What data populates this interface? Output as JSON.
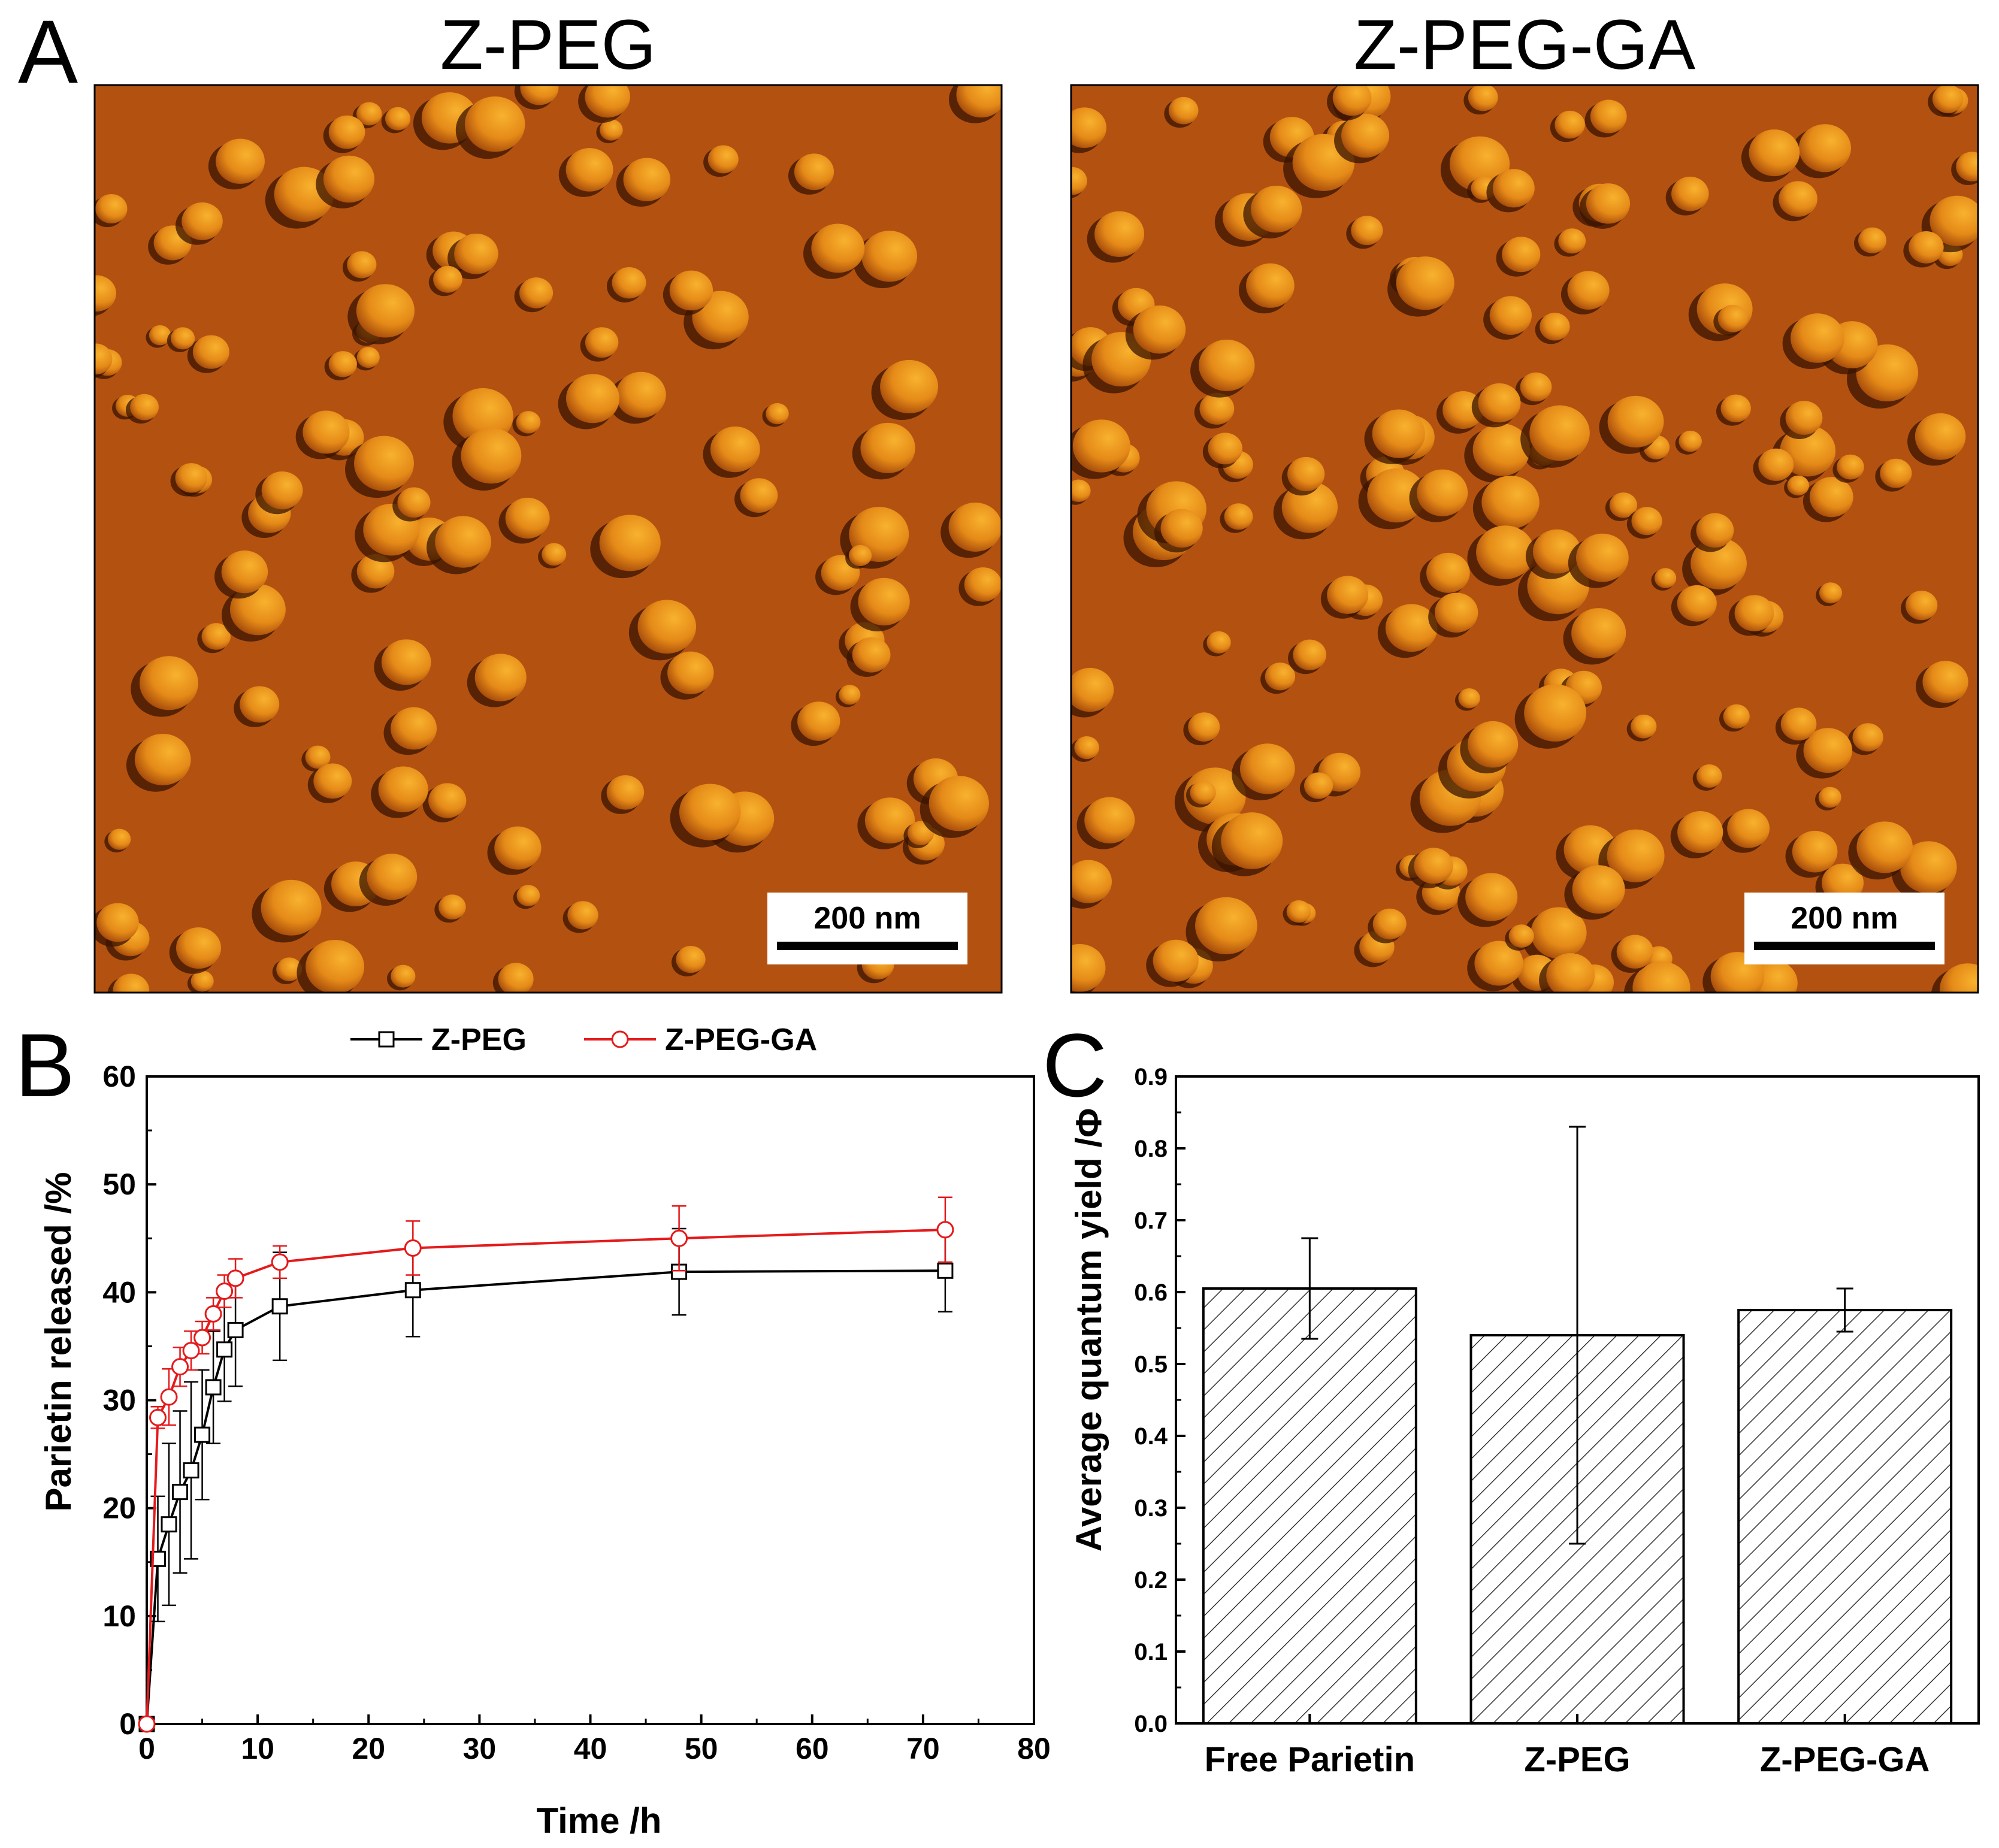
{
  "panel_a": {
    "letter": "A",
    "images": [
      {
        "title": "Z-PEG",
        "scale_bar": "200 nm"
      },
      {
        "title": "Z-PEG-GA",
        "scale_bar": "200 nm"
      }
    ],
    "colors": {
      "substrate": "#b35210",
      "particle_light": "#f4a020",
      "particle_shadow": "#3a1400"
    }
  },
  "chart_data": [
    {
      "panel": "B",
      "type": "line",
      "xlabel": "Time /h",
      "ylabel": "Parietin released /%",
      "xlim": [
        0,
        80
      ],
      "ylim": [
        0,
        60
      ],
      "xticks": [
        0,
        10,
        20,
        30,
        40,
        50,
        60,
        70,
        80
      ],
      "yticks": [
        0,
        10,
        20,
        30,
        40,
        50,
        60
      ],
      "legend_position": "top",
      "series": [
        {
          "name": "Z-PEG",
          "color": "#000000",
          "marker": "square",
          "x": [
            0,
            1,
            2,
            3,
            4,
            5,
            6,
            7,
            8,
            12,
            24,
            48,
            72
          ],
          "y": [
            0,
            15.3,
            18.5,
            21.5,
            23.5,
            26.8,
            31.2,
            34.7,
            36.5,
            38.7,
            40.2,
            41.9,
            42.0
          ],
          "error": [
            0,
            5.8,
            7.5,
            7.5,
            8.2,
            6.0,
            5.2,
            4.8,
            5.2,
            5.0,
            4.3,
            4.0,
            3.8
          ]
        },
        {
          "name": "Z-PEG-GA",
          "color": "#e41a1c",
          "marker": "circle",
          "x": [
            0,
            1,
            2,
            3,
            4,
            5,
            6,
            7,
            8,
            12,
            24,
            48,
            72
          ],
          "y": [
            0,
            28.4,
            30.3,
            33.1,
            34.6,
            35.8,
            38.0,
            40.1,
            41.3,
            42.8,
            44.1,
            45.0,
            45.8
          ],
          "error": [
            0,
            1.0,
            2.6,
            1.8,
            1.8,
            1.5,
            1.5,
            1.5,
            1.8,
            1.5,
            2.5,
            3.0,
            3.0
          ]
        }
      ]
    },
    {
      "panel": "C",
      "type": "bar",
      "ylabel": "Average quantum yield /Φ",
      "categories": [
        "Free Parietin",
        "Z-PEG",
        "Z-PEG-GA"
      ],
      "values": [
        0.605,
        0.54,
        0.575
      ],
      "errors": [
        0.07,
        0.29,
        0.03
      ],
      "ylim": [
        0,
        0.9
      ],
      "yticks": [
        0.0,
        0.1,
        0.2,
        0.3,
        0.4,
        0.5,
        0.6,
        0.7,
        0.8,
        0.9
      ],
      "fill": "hatched"
    }
  ]
}
